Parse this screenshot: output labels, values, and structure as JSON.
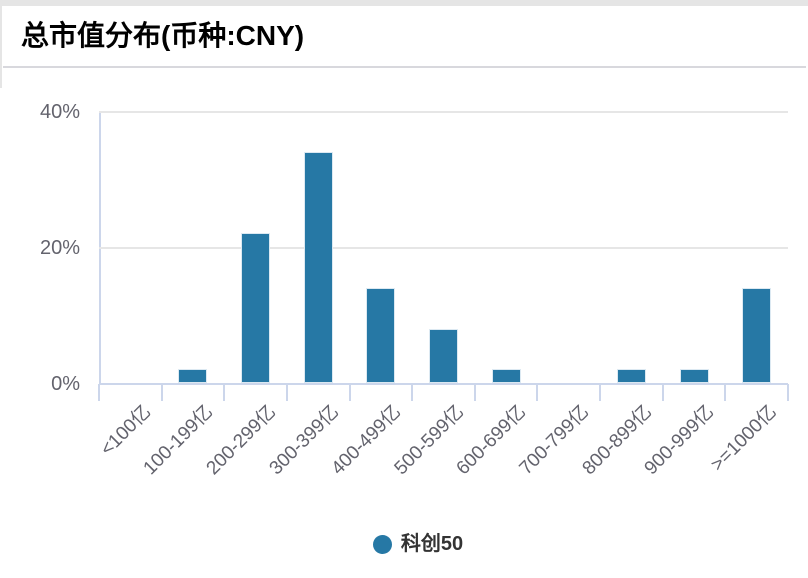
{
  "header": {
    "title": "总市值分布(币种:CNY)"
  },
  "legend": {
    "label": "科创50"
  },
  "colors": {
    "bar": "#2678a5",
    "bar_border": "#dce9f2",
    "axis_line": "#ccd6eb",
    "grid_line": "#e6e6e6",
    "axis_label": "#63636d",
    "legend_marker": "#2678a5"
  },
  "chart_data": {
    "type": "bar",
    "title": "总市值分布(币种:CNY)",
    "categories": [
      "<100亿",
      "100-199亿",
      "200-299亿",
      "300-399亿",
      "400-499亿",
      "500-599亿",
      "600-699亿",
      "700-799亿",
      "800-899亿",
      "900-999亿",
      ">=1000亿"
    ],
    "series": [
      {
        "name": "科创50",
        "values": [
          0,
          2,
          22,
          34,
          14,
          8,
          2,
          0,
          2,
          2,
          14
        ]
      }
    ],
    "unit": "%",
    "xlabel": "",
    "ylabel": "",
    "ylim": [
      0,
      40
    ],
    "yticks": [
      0,
      20,
      40
    ],
    "ytick_labels": [
      "0%",
      "20%",
      "40%"
    ],
    "grid": "horizontal-on",
    "x_label_rotation": -45,
    "legend_position": "bottom"
  }
}
